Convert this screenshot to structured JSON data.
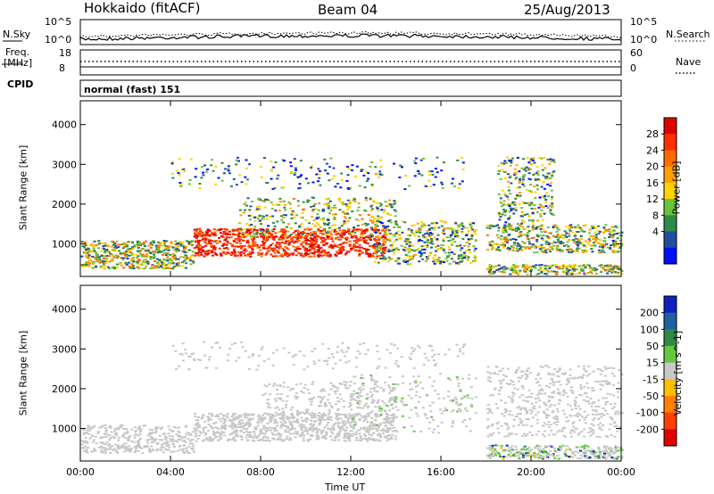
{
  "header": {
    "station": "Hokkaido (fitACF)",
    "beam": "Beam 04",
    "date": "25/Aug/2013"
  },
  "top_panels": {
    "nsky_label": "N.Sky",
    "nsky_ticks": [
      "10^5",
      "10^0"
    ],
    "nsearch_label": "N.Search",
    "nsearch_ticks": [
      "10^5",
      "10^0"
    ],
    "freq_label_1": "Freq.",
    "freq_label_2": "[MHz]",
    "freq_ticks": [
      "18",
      "8"
    ],
    "nave_label": "Nave",
    "nave_ticks": [
      "60",
      "0"
    ],
    "cpid_label": "CPID",
    "cpid_value": "normal (fast) 151"
  },
  "chart_data": [
    {
      "type": "heatmap",
      "title": "",
      "xlabel": "Time UT",
      "ylabel": "Slant Range [km]",
      "x_ticks": [
        "00:00",
        "04:00",
        "08:00",
        "12:00",
        "16:00",
        "20:00",
        "00:00"
      ],
      "y_ticks": [
        "1000",
        "2000",
        "3000",
        "4000"
      ],
      "xlim_hours": [
        0,
        24
      ],
      "ylim_km": [
        180,
        4600
      ],
      "colorbar": {
        "label": "Power [dB]",
        "ticks": [
          "28",
          "24",
          "20",
          "16",
          "12",
          "8",
          "4"
        ],
        "colors": [
          "#e00000",
          "#ff3000",
          "#ff6a00",
          "#ffa000",
          "#ffd400",
          "#6ac23a",
          "#2f8a48",
          "#1f4f9f",
          "#0010ff"
        ]
      }
    },
    {
      "type": "heatmap",
      "title": "",
      "xlabel": "Time UT",
      "ylabel": "Slant Range [km]",
      "x_ticks": [
        "00:00",
        "04:00",
        "08:00",
        "12:00",
        "16:00",
        "20:00",
        "00:00"
      ],
      "y_ticks": [
        "1000",
        "2000",
        "3000",
        "4000"
      ],
      "xlim_hours": [
        0,
        24
      ],
      "ylim_km": [
        180,
        4600
      ],
      "colorbar": {
        "label": "Velocity [m s^-1]",
        "ticks": [
          "200",
          "100",
          "50",
          "15",
          "-15",
          "-50",
          "-100",
          "-200"
        ],
        "colors": [
          "#1020c0",
          "#205fa0",
          "#2f8a48",
          "#64c840",
          "#c8c8c8",
          "#ffc000",
          "#ff8000",
          "#ff4000",
          "#e00000"
        ]
      }
    }
  ]
}
